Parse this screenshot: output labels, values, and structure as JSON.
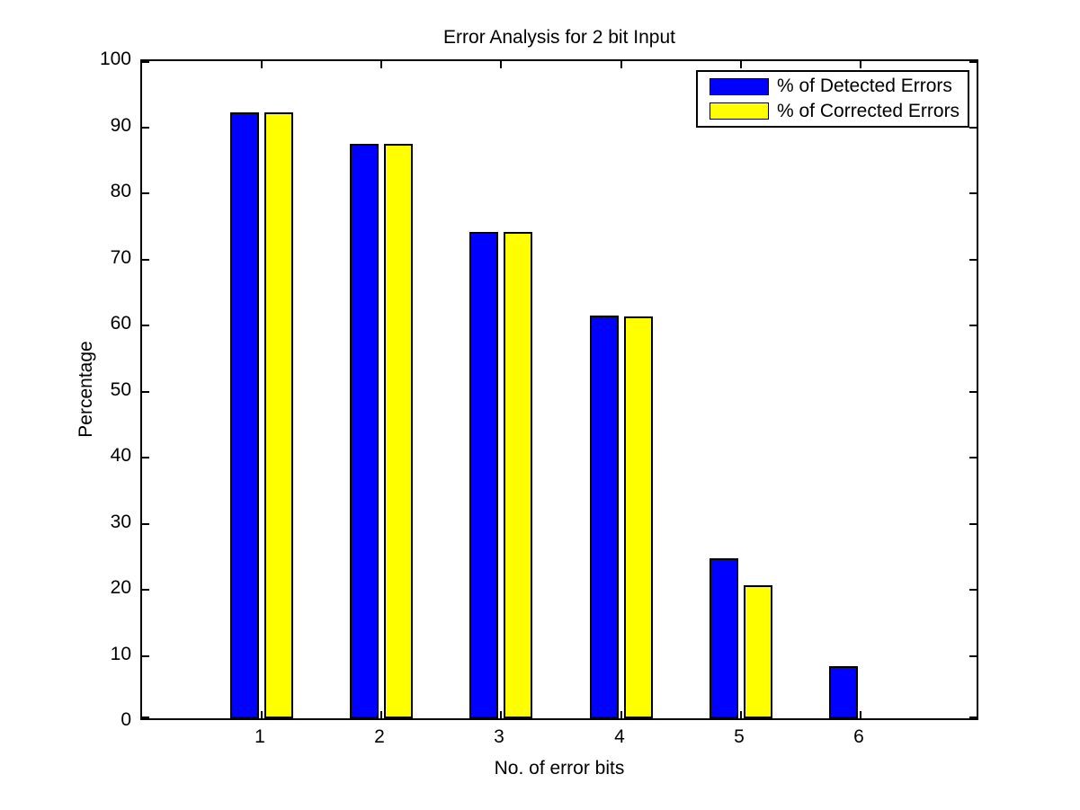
{
  "figure": {
    "background": "#ffffff"
  },
  "chart_data": {
    "type": "bar",
    "title": "Error Analysis for 2 bit Input",
    "xlabel": "No. of error bits",
    "ylabel": "Percentage",
    "categories": [
      "1",
      "2",
      "3",
      "4",
      "5",
      "6"
    ],
    "series": [
      {
        "name": "% of Detected Errors",
        "color": "#0000ff",
        "values": [
          91.7,
          87.0,
          73.6,
          61.0,
          24.2,
          7.9
        ]
      },
      {
        "name": "% of Corrected Errors",
        "color": "#ffff00",
        "values": [
          91.7,
          87.0,
          73.6,
          60.8,
          20.1,
          0
        ]
      }
    ],
    "ylim": [
      0,
      100
    ],
    "xlim": [
      0,
      7
    ],
    "yticks": [
      0,
      10,
      20,
      30,
      40,
      50,
      60,
      70,
      80,
      90,
      100
    ],
    "grid": false,
    "legend_position": "top-right",
    "bar_edge_color": "#000000",
    "axis_color": "#000000"
  }
}
